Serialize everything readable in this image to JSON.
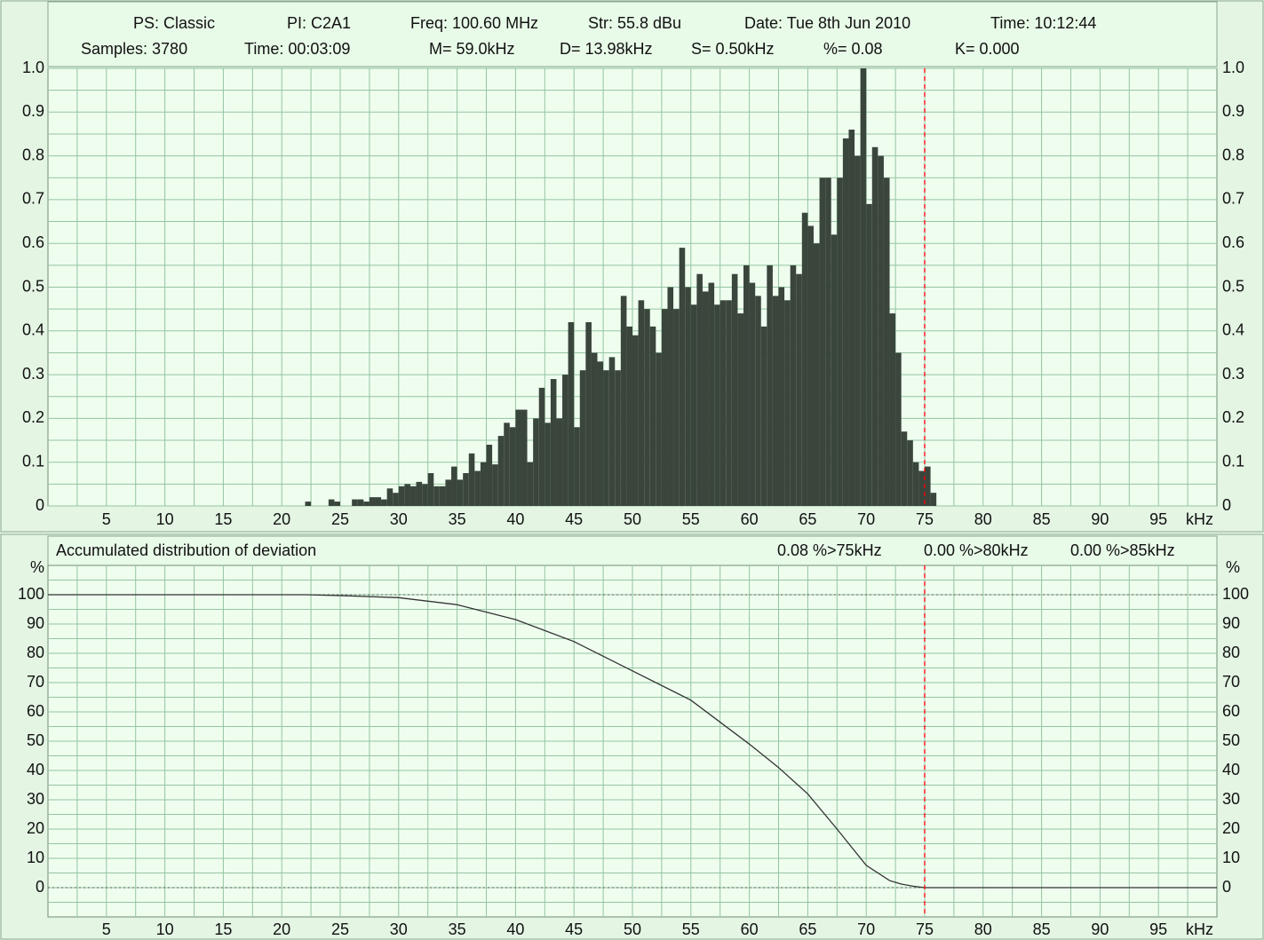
{
  "chart_data": [
    {
      "type": "histogram",
      "info_lines": [
        [
          "PS: Classic",
          "PI: C2A1",
          "Freq: 100.60 MHz",
          "Str: 55.8 dBu",
          "Date: Tue 8th Jun 2010",
          "Time: 10:12:44"
        ],
        [
          "Samples: 3780",
          "Time: 00:03:09",
          "M= 59.0kHz",
          "D= 13.98kHz",
          "S= 0.50kHz",
          "%= 0.08",
          "K= 0.000"
        ]
      ],
      "bins": [
        22,
        22.5,
        23,
        23.5,
        24,
        24.5,
        25,
        25.5,
        26,
        26.5,
        27,
        27.5,
        28,
        28.5,
        29,
        29.5,
        30,
        30.5,
        31,
        31.5,
        32,
        32.5,
        33,
        33.5,
        34,
        34.5,
        35,
        35.5,
        36,
        36.5,
        37,
        37.5,
        38,
        38.5,
        39,
        39.5,
        40,
        40.5,
        41,
        41.5,
        42,
        42.5,
        43,
        43.5,
        44,
        44.5,
        45,
        45.5,
        46,
        46.5,
        47,
        47.5,
        48,
        48.5,
        49,
        49.5,
        50,
        50.5,
        51,
        51.5,
        52,
        52.5,
        53,
        53.5,
        54,
        54.5,
        55,
        55.5,
        56,
        56.5,
        57,
        57.5,
        58,
        58.5,
        59,
        59.5,
        60,
        60.5,
        61,
        61.5,
        62,
        62.5,
        63,
        63.5,
        64,
        64.5,
        65,
        65.5,
        66,
        66.5,
        67,
        67.5,
        68,
        68.5,
        69,
        69.5,
        70,
        70.5,
        71,
        71.5,
        72,
        72.5,
        73,
        73.5,
        74,
        74.5,
        75,
        75.5,
        76
      ],
      "counts": [
        0.01,
        0,
        0,
        0,
        0.015,
        0.01,
        0,
        0,
        0.015,
        0.015,
        0.01,
        0.02,
        0.02,
        0.015,
        0.04,
        0.03,
        0.045,
        0.05,
        0.045,
        0.055,
        0.05,
        0.075,
        0.045,
        0.045,
        0.06,
        0.09,
        0.06,
        0.075,
        0.12,
        0.08,
        0.1,
        0.14,
        0.095,
        0.16,
        0.19,
        0.18,
        0.22,
        0.22,
        0.1,
        0.2,
        0.27,
        0.19,
        0.29,
        0.2,
        0.3,
        0.42,
        0.18,
        0.31,
        0.42,
        0.35,
        0.33,
        0.31,
        0.34,
        0.31,
        0.48,
        0.41,
        0.39,
        0.47,
        0.45,
        0.41,
        0.35,
        0.45,
        0.5,
        0.45,
        0.59,
        0.5,
        0.46,
        0.53,
        0.49,
        0.51,
        0.46,
        0.47,
        0.47,
        0.53,
        0.44,
        0.55,
        0.51,
        0.48,
        0.41,
        0.55,
        0.48,
        0.5,
        0.47,
        0.55,
        0.53,
        0.67,
        0.64,
        0.6,
        0.75,
        0.75,
        0.62,
        0.75,
        0.84,
        0.86,
        0.8,
        1.0,
        0.69,
        0.82,
        0.8,
        0.75,
        0.44,
        0.35,
        0.17,
        0.15,
        0.1,
        0.08,
        0.09,
        0.03
      ],
      "color": "#3a453c",
      "xlim": [
        0,
        100
      ],
      "xticks": [
        5,
        10,
        15,
        20,
        25,
        30,
        35,
        40,
        45,
        50,
        55,
        60,
        65,
        70,
        75,
        80,
        85,
        90,
        95
      ],
      "xlabel": "kHz",
      "ylim": [
        0,
        1
      ],
      "yticks": [
        0,
        0.1,
        0.2,
        0.3,
        0.4,
        0.5,
        0.6,
        0.7,
        0.8,
        0.9,
        {
          "value": 1,
          "label": "1.0"
        }
      ],
      "grid": true,
      "vline": 75,
      "vline_color": "#ff0000"
    },
    {
      "type": "line",
      "title": "Accumulated distribution of deviation",
      "annotations": [
        "0.08 %>75kHz",
        "0.00 %>80kHz",
        "0.00 %>85kHz"
      ],
      "ylabel": "%",
      "x": [
        0,
        22,
        25,
        30,
        35,
        40,
        45,
        50,
        55,
        60,
        62.5,
        65,
        67.5,
        70,
        72,
        73,
        74,
        75,
        100
      ],
      "series": [
        {
          "color": "#333333",
          "values": [
            100,
            100,
            99.7,
            99,
            96.6,
            91.5,
            84,
            74,
            64,
            49,
            41,
            32,
            20,
            7.6,
            2.4,
            1.2,
            0.5,
            0,
            0
          ]
        }
      ],
      "xlim": [
        0,
        100
      ],
      "xticks": [
        5,
        10,
        15,
        20,
        25,
        30,
        35,
        40,
        45,
        50,
        55,
        60,
        65,
        70,
        75,
        80,
        85,
        90,
        95
      ],
      "xlabel": "kHz",
      "ylim": [
        -10,
        110
      ],
      "yticks": [
        0,
        10,
        20,
        30,
        40,
        50,
        60,
        70,
        80,
        90,
        100
      ],
      "grid": true,
      "hlines": [
        0,
        100
      ],
      "vline": 75,
      "vline_color": "#ff0000"
    }
  ]
}
